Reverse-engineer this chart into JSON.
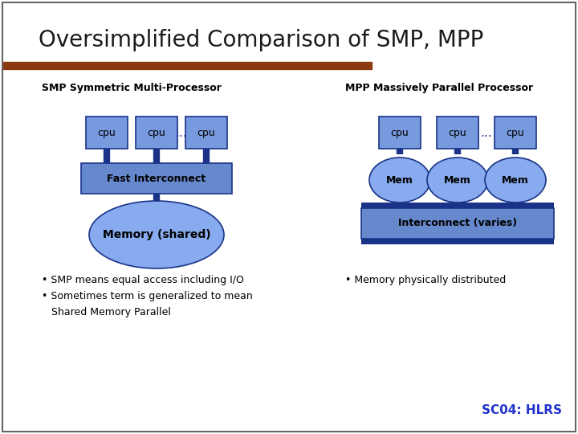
{
  "title": "Oversimplified Comparison of SMP, MPP",
  "title_color": "#1a1a1a",
  "title_fontsize": 20,
  "accent_bar_color": "#8B3A10",
  "bg_color": "#ffffff",
  "footer_text": "SC04: HLRS",
  "footer_color": "#2233cc",
  "smp_label": "SMP Symmetric Multi-Processor",
  "mpp_label": "MPP Massively Parallel Processor",
  "cpu_color": "#7799dd",
  "cpu_dark": "#1a3388",
  "interconnect_color": "#6688cc",
  "mem_color": "#88aaee",
  "mem_dark": "#1a3388",
  "smp_bullets": [
    "SMP means equal access including I/O",
    "Sometimes term is generalized to mean\n  Shared Memory Parallel"
  ],
  "mpp_bullets": [
    "Memory physically distributed"
  ]
}
